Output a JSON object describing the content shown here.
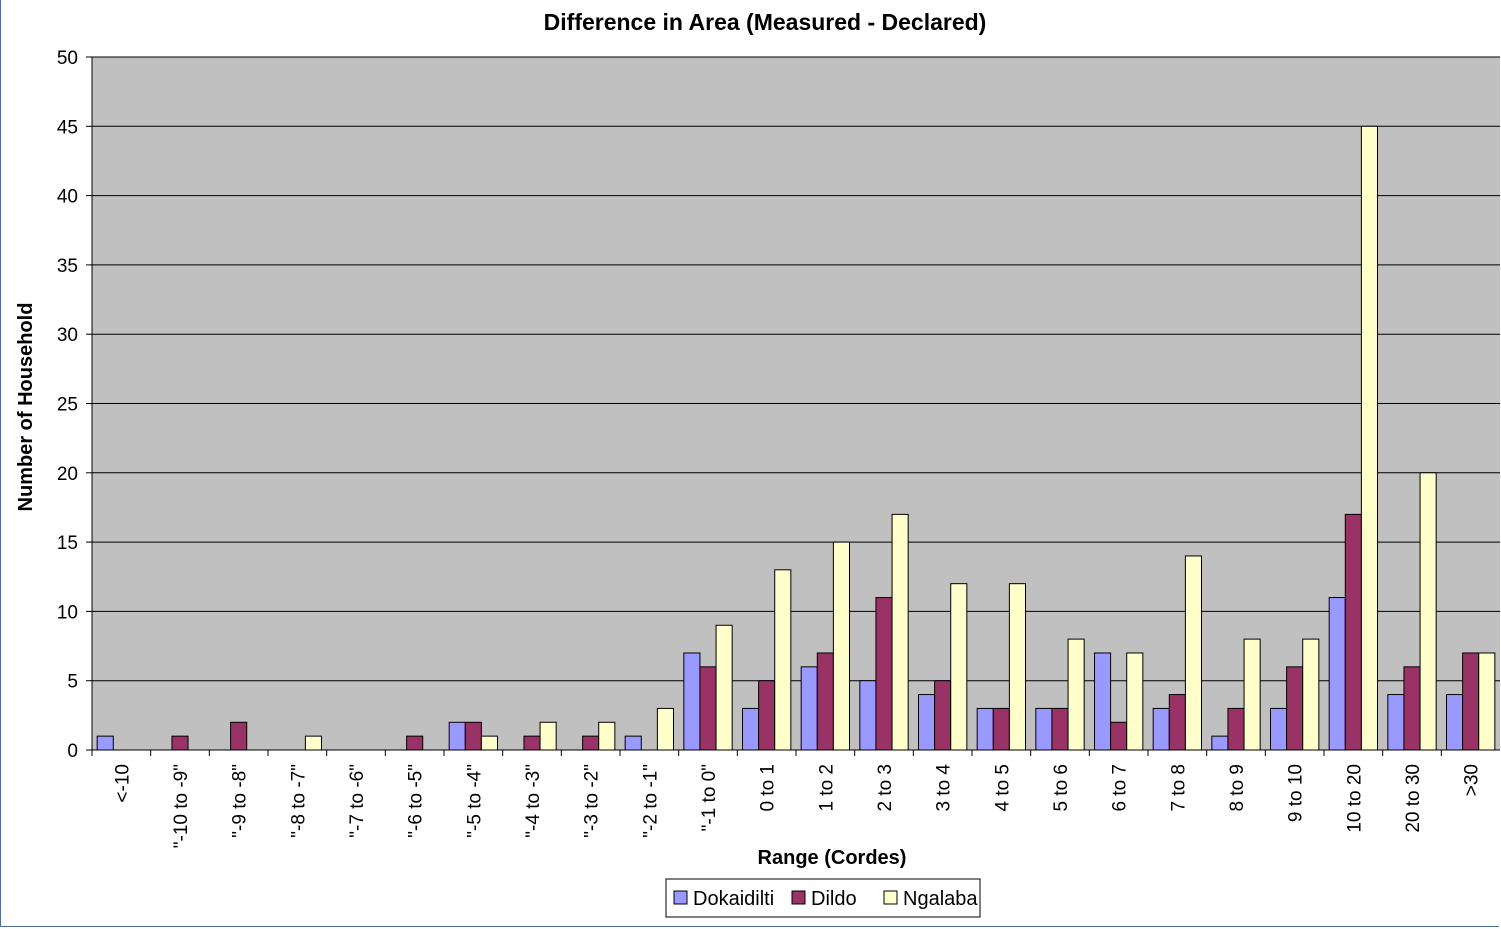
{
  "chart_data": {
    "type": "bar",
    "title": "Difference in Area (Measured - Declared)",
    "xlabel": "Range (Cordes)",
    "ylabel": "Number of Household",
    "ylim": [
      0,
      50
    ],
    "yticks": [
      0,
      5,
      10,
      15,
      20,
      25,
      30,
      35,
      40,
      45,
      50
    ],
    "grid": true,
    "legend_position": "bottom",
    "categories": [
      "<-10",
      "\"-10 to -9\"",
      "\"-9 to -8\"",
      "\"-8 to -7\"",
      "\"-7 to -6\"",
      "\"-6 to -5\"",
      "\"-5 to -4\"",
      "\"-4 to -3\"",
      "\"-3 to -2\"",
      "\"-2 to -1\"",
      "\"-1 to 0\"",
      "0 to 1",
      "1 to 2",
      "2 to 3",
      "3 to 4",
      "4 to 5",
      "5 to 6",
      "6 to 7",
      "7 to 8",
      "8 to 9",
      "9 to 10",
      "10 to 20",
      "20 to 30",
      ">30"
    ],
    "series": [
      {
        "name": "Dokaidilti",
        "color": "#9999ff",
        "values": [
          1,
          0,
          0,
          0,
          0,
          0,
          2,
          0,
          0,
          1,
          7,
          3,
          6,
          5,
          4,
          3,
          3,
          7,
          3,
          1,
          3,
          11,
          4,
          4
        ]
      },
      {
        "name": "Dildo",
        "color": "#993366",
        "values": [
          0,
          1,
          2,
          0,
          0,
          1,
          2,
          1,
          1,
          0,
          6,
          5,
          7,
          11,
          5,
          3,
          3,
          2,
          4,
          3,
          6,
          17,
          6,
          7
        ]
      },
      {
        "name": "Ngalaba",
        "color": "#ffffcc",
        "values": [
          0,
          0,
          0,
          1,
          0,
          0,
          1,
          2,
          2,
          3,
          9,
          13,
          15,
          17,
          12,
          12,
          8,
          7,
          14,
          8,
          8,
          45,
          20,
          7
        ]
      }
    ],
    "colors": {
      "plot_area": "#c0c0c0",
      "grid": "#000000"
    }
  }
}
